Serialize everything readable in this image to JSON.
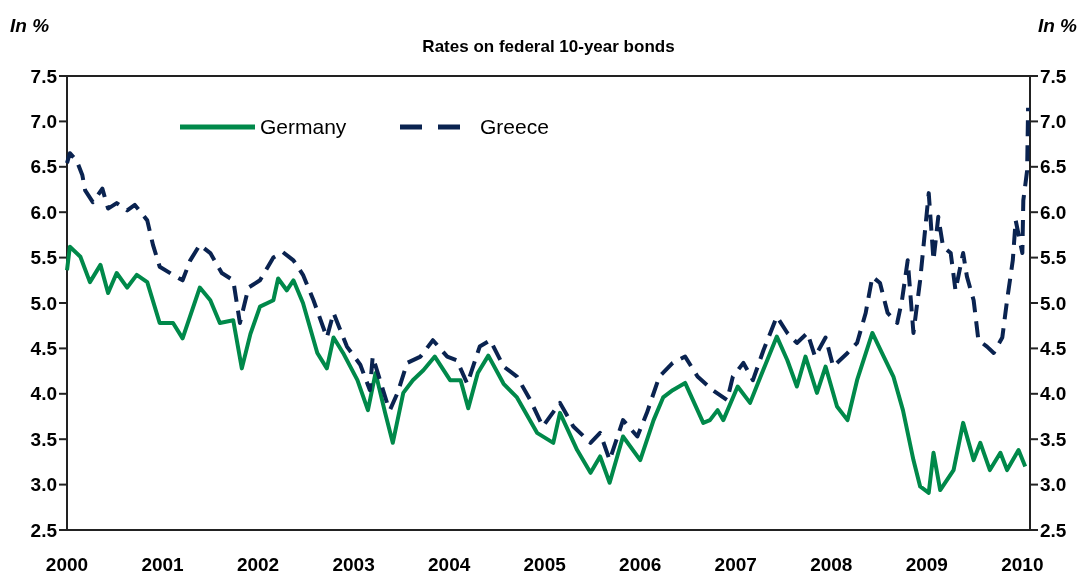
{
  "chart_data": {
    "type": "line",
    "title": "Rates on federal 10-year bonds",
    "ylabel": "In %",
    "y2label": "In %",
    "xlim": [
      2000,
      2010.08
    ],
    "xticks": [
      2000,
      2001,
      2002,
      2003,
      2004,
      2005,
      2006,
      2007,
      2008,
      2009,
      2010
    ],
    "ylim": [
      2.5,
      7.5
    ],
    "yticks": [
      2.5,
      {
        "value": 3,
        "label": "3.0"
      },
      3.5,
      {
        "value": 4,
        "label": "4.0"
      },
      4.5,
      {
        "value": 5,
        "label": "5.0"
      },
      5.5,
      {
        "value": 6,
        "label": "6.0"
      },
      6.5,
      {
        "value": 7,
        "label": "7.0"
      },
      7.5
    ],
    "y2lim": [
      2.5,
      7.5
    ],
    "y2ticks": [
      2.5,
      {
        "value": 3,
        "label": "3.0"
      },
      3.5,
      {
        "value": 4,
        "label": "4.0"
      },
      4.5,
      {
        "value": 5,
        "label": "5.0"
      },
      5.5,
      {
        "value": 6,
        "label": "6.0"
      },
      6.5,
      {
        "value": 7,
        "label": "7.0"
      },
      7.5
    ],
    "grid": false,
    "legend": "top left",
    "marker": "none",
    "series": [
      {
        "name": "Germany",
        "color": "#00894a",
        "line_style": "solid",
        "x": [
          2000.0,
          2000.03,
          2000.14,
          2000.24,
          2000.35,
          2000.43,
          2000.52,
          2000.63,
          2000.73,
          2000.84,
          2000.97,
          2001.11,
          2001.21,
          2001.39,
          2001.5,
          2001.6,
          2001.74,
          2001.83,
          2001.92,
          2002.02,
          2002.16,
          2002.21,
          2002.3,
          2002.37,
          2002.47,
          2002.62,
          2002.72,
          2002.79,
          2002.89,
          2003.04,
          2003.15,
          2003.23,
          2003.33,
          2003.41,
          2003.52,
          2003.62,
          2003.73,
          2003.85,
          2004.01,
          2004.12,
          2004.2,
          2004.3,
          2004.41,
          2004.57,
          2004.71,
          2004.92,
          2005.09,
          2005.16,
          2005.34,
          2005.48,
          2005.58,
          2005.68,
          2005.82,
          2006.0,
          2006.14,
          2006.24,
          2006.34,
          2006.47,
          2006.66,
          2006.73,
          2006.81,
          2006.87,
          2007.02,
          2007.15,
          2007.26,
          2007.43,
          2007.54,
          2007.64,
          2007.73,
          2007.85,
          2007.94,
          2008.06,
          2008.17,
          2008.27,
          2008.43,
          2008.53,
          2008.65,
          2008.75,
          2008.86,
          2008.93,
          2009.02,
          2009.07,
          2009.14,
          2009.28,
          2009.38,
          2009.49,
          2009.56,
          2009.66,
          2009.77,
          2009.84,
          2009.96,
          2010.03
        ],
        "values": [
          5.36,
          5.62,
          5.51,
          5.23,
          5.42,
          5.11,
          5.33,
          5.17,
          5.31,
          5.23,
          4.78,
          4.78,
          4.61,
          5.17,
          5.03,
          4.78,
          4.81,
          4.28,
          4.66,
          4.96,
          5.03,
          5.27,
          5.14,
          5.25,
          5.0,
          4.45,
          4.28,
          4.62,
          4.45,
          4.15,
          3.82,
          4.23,
          3.79,
          3.46,
          4.01,
          4.15,
          4.26,
          4.41,
          4.15,
          4.15,
          3.84,
          4.23,
          4.42,
          4.11,
          3.96,
          3.57,
          3.46,
          3.79,
          3.38,
          3.13,
          3.31,
          3.02,
          3.53,
          3.27,
          3.71,
          3.96,
          4.04,
          4.12,
          3.68,
          3.71,
          3.82,
          3.71,
          4.08,
          3.9,
          4.19,
          4.63,
          4.37,
          4.08,
          4.41,
          4.01,
          4.3,
          3.86,
          3.71,
          4.15,
          4.67,
          4.45,
          4.19,
          3.82,
          3.27,
          2.98,
          2.91,
          3.35,
          2.94,
          3.16,
          3.68,
          3.27,
          3.46,
          3.16,
          3.35,
          3.16,
          3.38,
          3.2
        ]
      },
      {
        "name": "Greece",
        "color": "#0a2350",
        "line_style": "dashed",
        "x": [
          2000.0,
          2000.03,
          2000.1,
          2000.16,
          2000.19,
          2000.27,
          2000.37,
          2000.43,
          2000.52,
          2000.63,
          2000.71,
          2000.84,
          2000.9,
          2000.97,
          2001.11,
          2001.21,
          2001.29,
          2001.39,
          2001.5,
          2001.62,
          2001.74,
          2001.81,
          2001.9,
          2002.02,
          2002.16,
          2002.26,
          2002.37,
          2002.47,
          2002.58,
          2002.72,
          2002.79,
          2002.93,
          2003.07,
          2003.17,
          2003.2,
          2003.35,
          2003.38,
          2003.46,
          2003.56,
          2003.7,
          2003.83,
          2003.98,
          2004.08,
          2004.19,
          2004.32,
          2004.43,
          2004.57,
          2004.71,
          2004.85,
          2004.98,
          2005.16,
          2005.3,
          2005.48,
          2005.58,
          2005.68,
          2005.82,
          2005.97,
          2006.07,
          2006.2,
          2006.34,
          2006.47,
          2006.6,
          2006.76,
          2006.91,
          2006.97,
          2007.08,
          2007.18,
          2007.29,
          2007.43,
          2007.54,
          2007.64,
          2007.75,
          2007.83,
          2007.94,
          2008.02,
          2008.17,
          2008.27,
          2008.36,
          2008.43,
          2008.51,
          2008.59,
          2008.69,
          2008.74,
          2008.8,
          2008.86,
          2008.93,
          2009.02,
          2009.07,
          2009.12,
          2009.17,
          2009.25,
          2009.3,
          2009.38,
          2009.42,
          2009.49,
          2009.54,
          2009.63,
          2009.7,
          2009.79,
          2009.84,
          2009.9,
          2009.93,
          2010.0,
          2010.01,
          2010.05,
          2010.06
        ],
        "values": [
          6.54,
          6.65,
          6.57,
          6.41,
          6.24,
          6.11,
          6.26,
          6.04,
          6.1,
          6.02,
          6.08,
          5.91,
          5.64,
          5.4,
          5.31,
          5.25,
          5.47,
          5.64,
          5.55,
          5.33,
          5.25,
          4.78,
          5.17,
          5.25,
          5.5,
          5.56,
          5.47,
          5.31,
          5.03,
          4.62,
          4.89,
          4.52,
          4.32,
          4.04,
          4.41,
          3.9,
          3.82,
          4.01,
          4.34,
          4.41,
          4.59,
          4.41,
          4.37,
          4.11,
          4.52,
          4.59,
          4.3,
          4.19,
          3.93,
          3.64,
          3.9,
          3.64,
          3.46,
          3.57,
          3.27,
          3.71,
          3.53,
          3.79,
          4.19,
          4.34,
          4.41,
          4.19,
          4.04,
          3.93,
          4.19,
          4.34,
          4.15,
          4.48,
          4.85,
          4.67,
          4.56,
          4.67,
          4.41,
          4.62,
          4.3,
          4.45,
          4.56,
          4.89,
          5.29,
          5.22,
          4.89,
          4.78,
          5.03,
          5.47,
          4.67,
          5.25,
          6.21,
          5.47,
          5.95,
          5.62,
          5.55,
          5.14,
          5.55,
          5.29,
          5.03,
          4.59,
          4.52,
          4.45,
          4.62,
          5.03,
          5.47,
          5.91,
          5.55,
          6.13,
          6.46,
          7.15
        ]
      }
    ]
  }
}
